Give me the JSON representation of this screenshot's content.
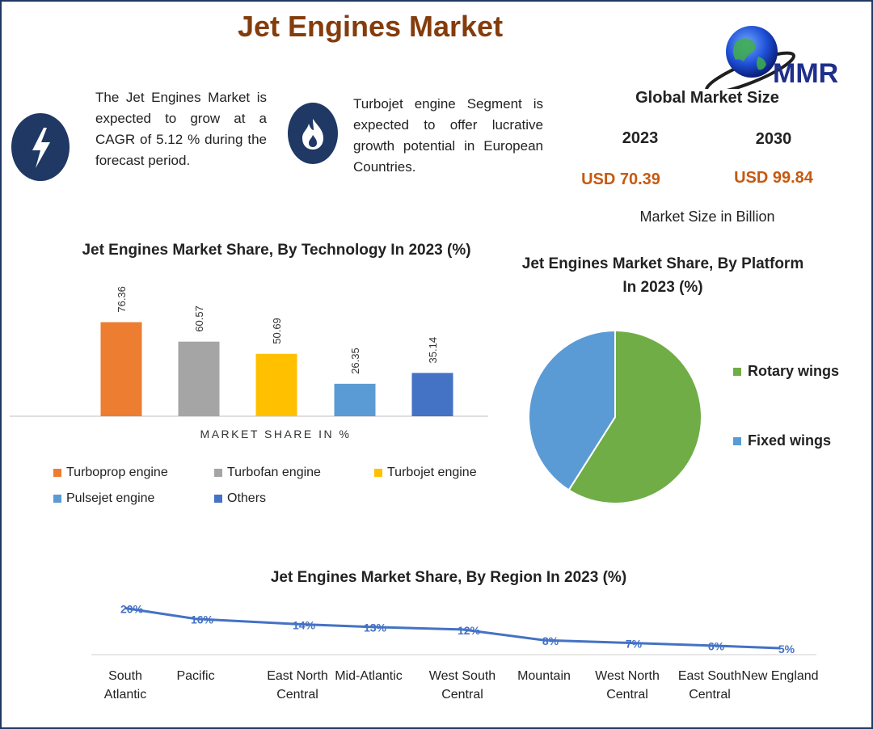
{
  "title": "Jet Engines Market",
  "logo_text": "MMR",
  "info": {
    "cagr_text": "The Jet Engines Market is expected to grow at a CAGR of 5.12 % during the forecast period.",
    "segment_text": "Turbojet engine Segment is expected to offer lucrative growth potential in European Countries."
  },
  "market_size": {
    "title": "Global Market Size",
    "year_a": "2023",
    "year_b": "2030",
    "value_a": "USD 70.39",
    "value_b": "USD 99.84",
    "note": "Market Size in Billion"
  },
  "chart_data": [
    {
      "type": "bar",
      "title": "Jet Engines Market Share, By Technology In 2023 (%)",
      "xlabel": "MARKET SHARE IN %",
      "categories": [
        "Turboprop engine",
        "Turbofan engine",
        "Turbojet engine",
        "Pulsejet engine",
        "Others"
      ],
      "values": [
        76.36,
        60.57,
        50.69,
        26.35,
        35.14
      ],
      "value_labels": [
        "76.36",
        "60.57",
        "50.69",
        "26.35",
        "35.14"
      ],
      "colors": [
        "#ed7d31",
        "#a5a5a5",
        "#ffc000",
        "#5b9bd5",
        "#4472c4"
      ],
      "legend": "bottom"
    },
    {
      "type": "pie",
      "title": "Jet Engines Market Share, By Platform In 2023 (%)",
      "labels": [
        "Rotary wings",
        "Fixed wings"
      ],
      "values": [
        59,
        41
      ],
      "colors": [
        "#70ad47",
        "#5b9bd5"
      ],
      "legend": "right"
    },
    {
      "type": "line",
      "title": "Jet Engines Market Share, By Region In 2023 (%)",
      "categories": [
        "South Atlantic",
        "Pacific",
        "East North Central",
        "Mid-Atlantic",
        "West South Central",
        "Mountain",
        "West North Central",
        "East South Central",
        "New England"
      ],
      "category_lines": [
        [
          "South",
          "Atlantic"
        ],
        [
          "Pacific"
        ],
        [
          "East North",
          "Central"
        ],
        [
          "Mid-Atlantic"
        ],
        [
          "West South",
          "Central"
        ],
        [
          "Mountain"
        ],
        [
          "West North",
          "Central"
        ],
        [
          "East South",
          "Central"
        ],
        [
          "New England"
        ]
      ],
      "values": [
        20,
        16,
        14,
        13,
        12,
        8,
        7,
        6,
        5
      ],
      "value_labels": [
        "20%",
        "16%",
        "14%",
        "13%",
        "12%",
        "8%",
        "7%",
        "6%",
        "5%"
      ],
      "color": "#4472c4"
    }
  ]
}
